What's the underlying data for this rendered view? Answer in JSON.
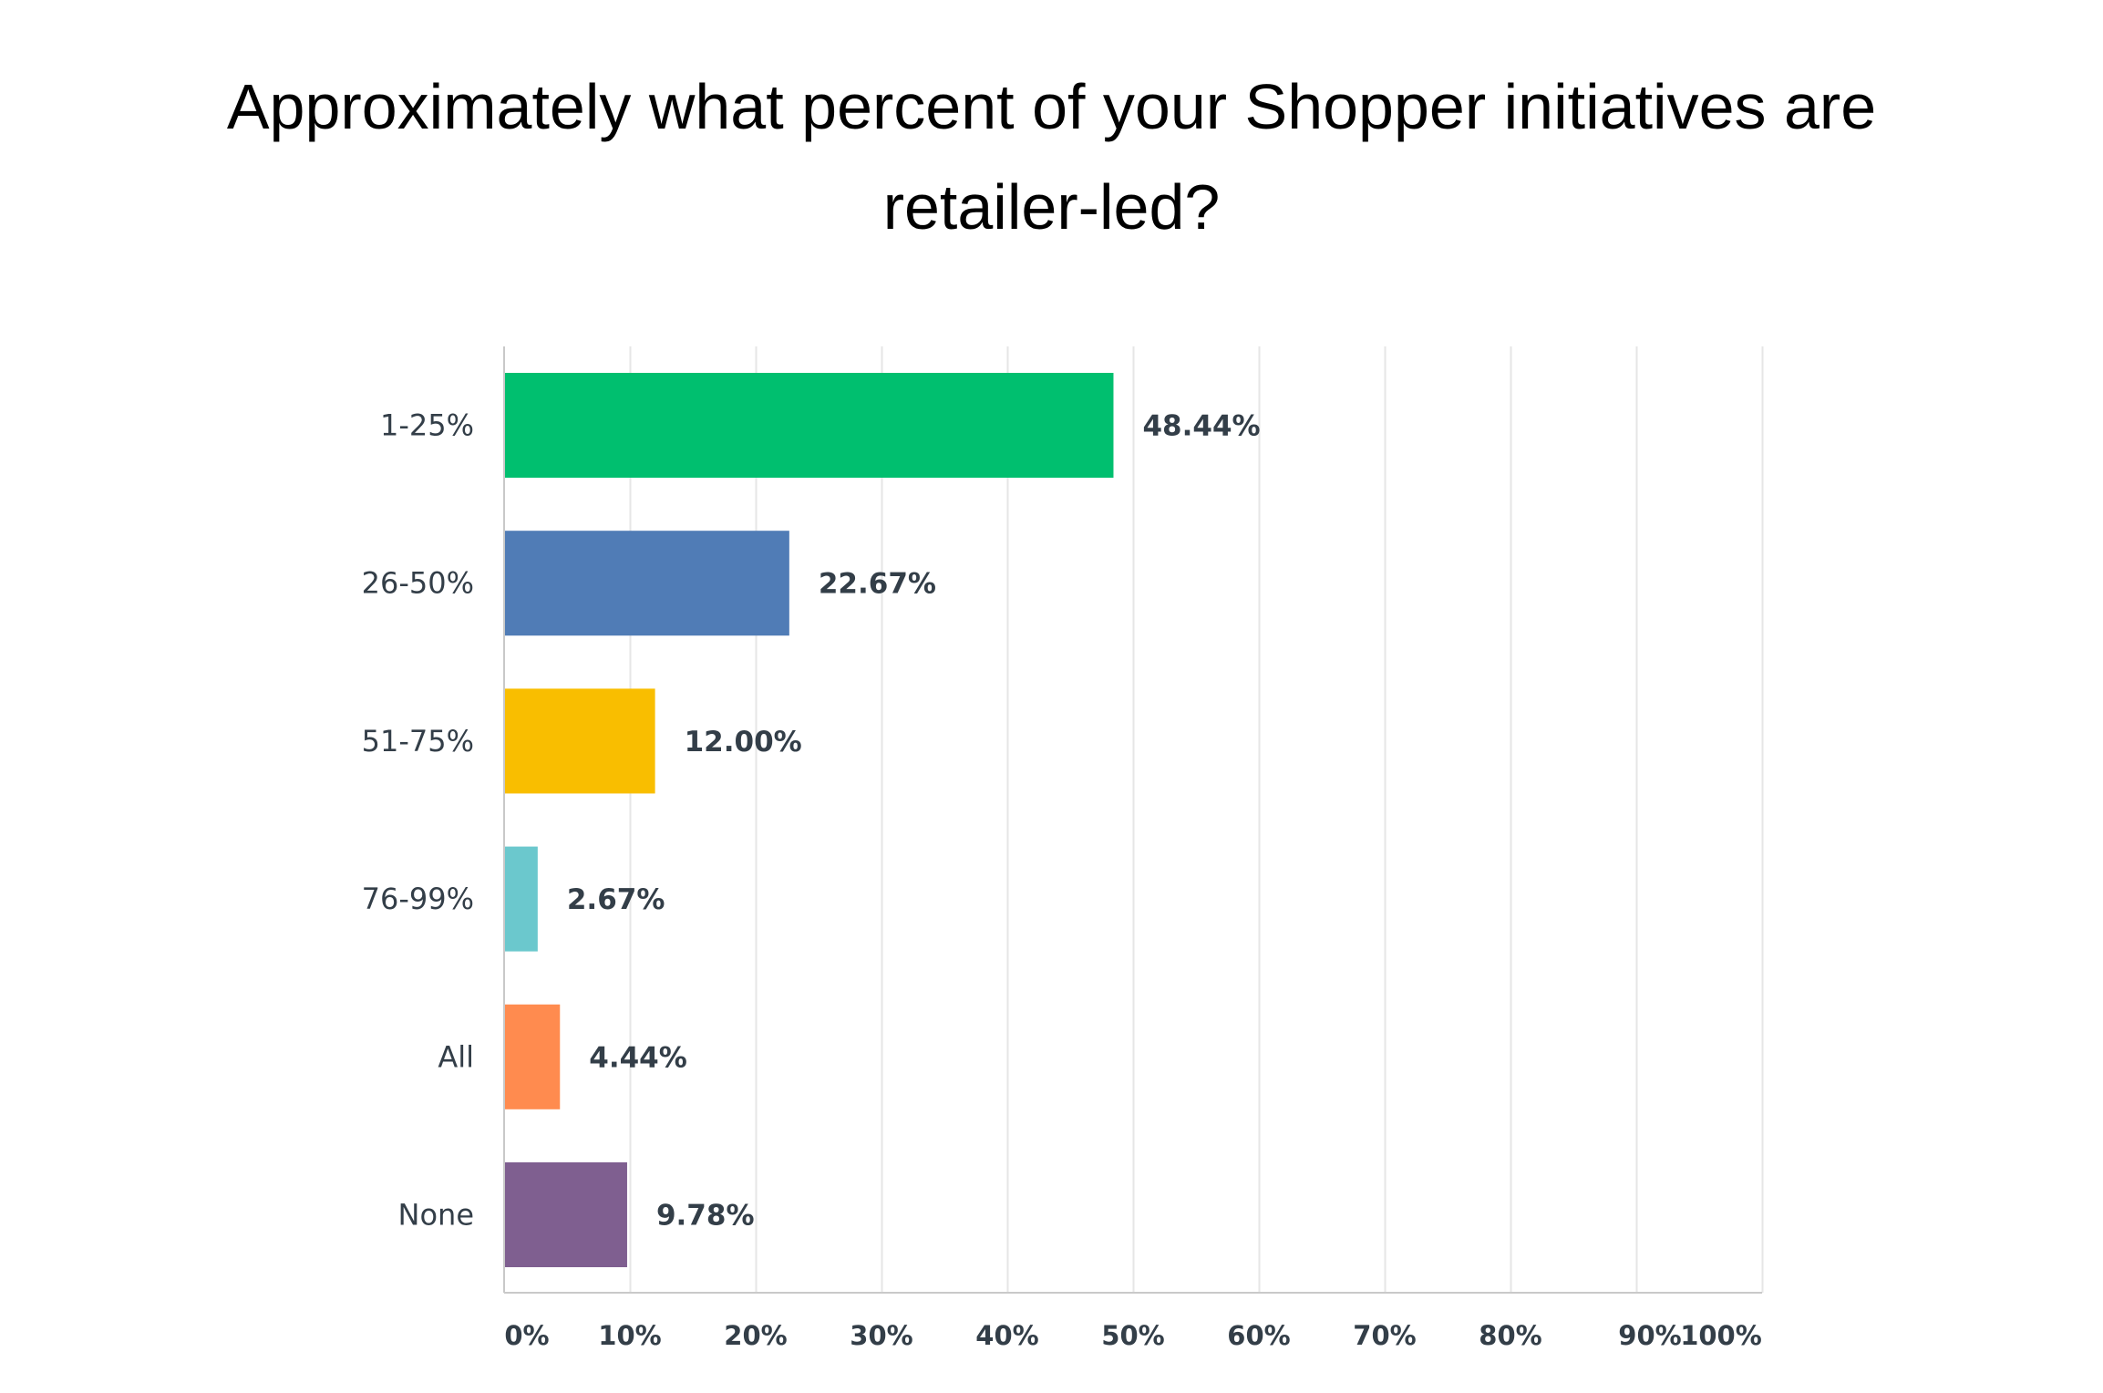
{
  "chart_data": {
    "type": "bar",
    "orientation": "horizontal",
    "title_lines": [
      "Approximately what percent of your Shopper initiatives are",
      "retailer-led?"
    ],
    "categories": [
      "1-25%",
      "26-50%",
      "51-75%",
      "76-99%",
      "All",
      "None"
    ],
    "values": [
      48.44,
      22.67,
      12.0,
      2.67,
      4.44,
      9.78
    ],
    "value_labels": [
      "48.44%",
      "22.67%",
      "12.00%",
      "2.67%",
      "4.44%",
      "9.78%"
    ],
    "colors": [
      "#00bf6f",
      "#507cb6",
      "#f9be00",
      "#6bc8cd",
      "#ff8b4f",
      "#7f5f90"
    ],
    "xlim": [
      0,
      100
    ],
    "x_ticks": [
      0,
      10,
      20,
      30,
      40,
      50,
      60,
      70,
      80,
      90,
      100
    ],
    "x_tick_labels": [
      "0%",
      "10%",
      "20%",
      "30%",
      "40%",
      "50%",
      "60%",
      "70%",
      "80%",
      "90%",
      "100%"
    ],
    "grid": true,
    "legend": "none",
    "grid_color": "#e6e6e6",
    "axis_color": "#c9c9c9",
    "text_color": "#333e48"
  }
}
